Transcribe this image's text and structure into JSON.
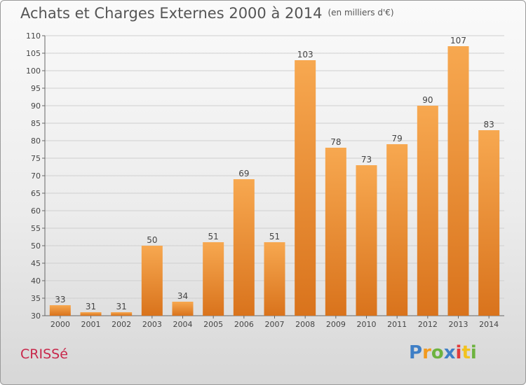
{
  "title": "Achats et Charges Externes 2000 à 2014",
  "subtitle": "(en milliers d'€)",
  "commune": "CRISSé",
  "logo_text": "Proxiti",
  "colors": {
    "bar_light": "#f7a850",
    "bar_dark": "#d9731c",
    "commune": "#c8284b"
  },
  "chart_data": {
    "type": "bar",
    "title": "Achats et Charges Externes 2000 à 2014",
    "subtitle": "(en milliers d'€)",
    "categories": [
      "2000",
      "2001",
      "2002",
      "2003",
      "2004",
      "2005",
      "2006",
      "2007",
      "2008",
      "2009",
      "2010",
      "2011",
      "2012",
      "2013",
      "2014"
    ],
    "values": [
      33,
      31,
      31,
      50,
      34,
      51,
      69,
      51,
      103,
      78,
      73,
      79,
      90,
      107,
      83
    ],
    "ylim": [
      30,
      110
    ],
    "yticks": [
      30,
      35,
      40,
      45,
      50,
      55,
      60,
      65,
      70,
      75,
      80,
      85,
      90,
      95,
      100,
      105,
      110
    ],
    "grid": true,
    "data_labels": true
  }
}
